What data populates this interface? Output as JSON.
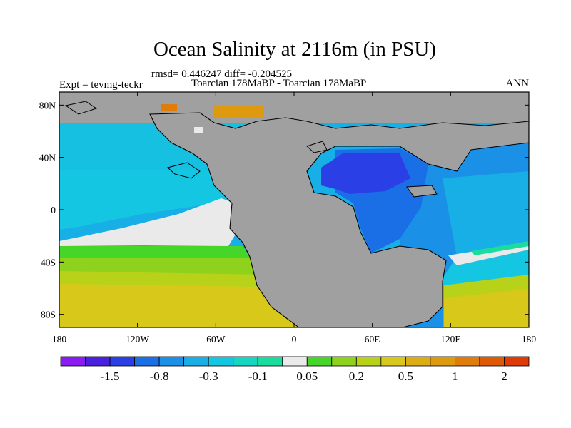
{
  "title": "Ocean Salinity at 2116m (in PSU)",
  "stats": "rmsd= 0.446247 diff= -0.204525",
  "expt": "Expt = tevmg-teckr",
  "period": "Toarcian 178MaBP - Toarcian 178MaBP",
  "season": "ANN",
  "axes": {
    "lon_ticks": [
      {
        "value": -180,
        "label": "180"
      },
      {
        "value": -120,
        "label": "120W"
      },
      {
        "value": -60,
        "label": "60W"
      },
      {
        "value": 0,
        "label": "0"
      },
      {
        "value": 60,
        "label": "60E"
      },
      {
        "value": 120,
        "label": "120E"
      },
      {
        "value": 180,
        "label": "180"
      }
    ],
    "lat_ticks": [
      {
        "value": 80,
        "label": "80N"
      },
      {
        "value": 40,
        "label": "40N"
      },
      {
        "value": 0,
        "label": "0"
      },
      {
        "value": -40,
        "label": "40S"
      },
      {
        "value": -80,
        "label": "80S"
      }
    ],
    "lon_range": [
      -180,
      180
    ],
    "lat_range": [
      -90,
      90
    ]
  },
  "colorbar": {
    "colors": [
      "#8a1cf2",
      "#4a20e0",
      "#2a40e6",
      "#1a6ee6",
      "#1a90e6",
      "#18aee6",
      "#14c6e2",
      "#16d6c2",
      "#1adc9e",
      "#eaeaea",
      "#46d62a",
      "#8ed21e",
      "#b8d21a",
      "#d8c81a",
      "#dcae14",
      "#de9a0e",
      "#e07c0a",
      "#e05a06",
      "#e03a06"
    ],
    "labels": [
      {
        "boundary": 2,
        "text": "-1.5"
      },
      {
        "boundary": 4,
        "text": "-0.8"
      },
      {
        "boundary": 6,
        "text": "-0.3"
      },
      {
        "boundary": 8,
        "text": "-0.1"
      },
      {
        "boundary": 10,
        "text": "0.05"
      },
      {
        "boundary": 12,
        "text": "0.2"
      },
      {
        "boundary": 14,
        "text": "0.5"
      },
      {
        "boundary": 16,
        "text": "1"
      },
      {
        "boundary": 18,
        "text": "2"
      }
    ]
  },
  "colors": {
    "land": "#a0a0a0",
    "coast": "#000000",
    "background": "#ffffff"
  }
}
